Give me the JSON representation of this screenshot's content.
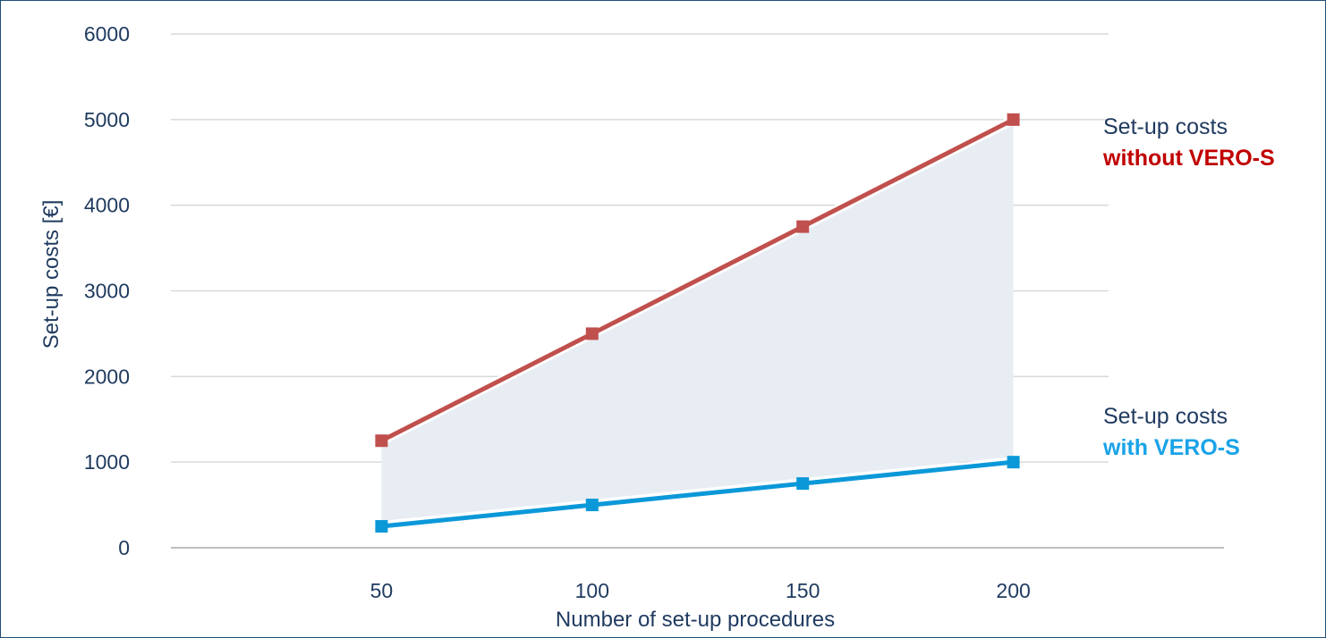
{
  "chart_data": {
    "type": "line",
    "x": [
      50,
      100,
      150,
      200
    ],
    "series": [
      {
        "name": "without VERO-S",
        "values": [
          1250,
          2500,
          3750,
          5000
        ],
        "color": "#c0504d"
      },
      {
        "name": "with VERO-S",
        "values": [
          250,
          500,
          750,
          1000
        ],
        "color": "#0b98d9"
      }
    ],
    "fill_between": {
      "color": "#e8edf4"
    },
    "xlabel": "Number of set-up procedures",
    "ylabel": "Set-up costs [€]",
    "x_ticks": [
      "50",
      "100",
      "150",
      "200"
    ],
    "y_ticks": [
      "0",
      "1000",
      "2000",
      "3000",
      "4000",
      "5000",
      "6000"
    ],
    "ylim": [
      0,
      6000
    ],
    "grid": true,
    "marker": "square",
    "annotations": [
      {
        "line1": "Set-up costs",
        "line2": "without VERO-S",
        "line2_color": "#c00000"
      },
      {
        "line1": "Set-up costs",
        "line2": "with VERO-S",
        "line2_color": "#1aa3e8"
      }
    ],
    "colors": {
      "text": "#1f3a5f",
      "grid": "#d9d9d9",
      "axis": "#bfbfbf"
    }
  }
}
